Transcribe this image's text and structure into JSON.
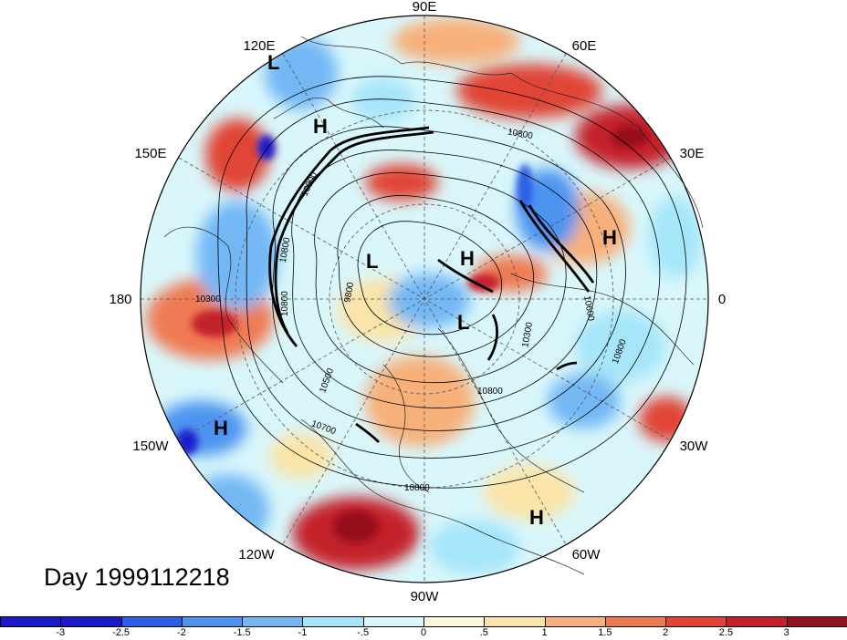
{
  "map": {
    "projection": "north-polar-stereographic",
    "longitude_labels": [
      {
        "lon": 90,
        "label": "90E"
      },
      {
        "lon": 60,
        "label": "60E"
      },
      {
        "lon": 30,
        "label": "30E"
      },
      {
        "lon": 0,
        "label": "0"
      },
      {
        "lon": -30,
        "label": "30W"
      },
      {
        "lon": -60,
        "label": "60W"
      },
      {
        "lon": -90,
        "label": "90W"
      },
      {
        "lon": -120,
        "label": "120W"
      },
      {
        "lon": -150,
        "label": "150W"
      },
      {
        "lon": 180,
        "label": "180"
      },
      {
        "lon": 150,
        "label": "150E"
      },
      {
        "lon": 120,
        "label": "120E"
      }
    ],
    "contour_labels": [
      "10800",
      "10900",
      "10800",
      "10300",
      "10800",
      "9800",
      "10600",
      "10300",
      "10800",
      "10500",
      "10700",
      "10800",
      "10800"
    ],
    "pressure_centers": [
      {
        "type": "L",
        "label": "L"
      },
      {
        "type": "H",
        "label": "H"
      },
      {
        "type": "L",
        "label": "L"
      },
      {
        "type": "H",
        "label": "H"
      },
      {
        "type": "H",
        "label": "H"
      },
      {
        "type": "L",
        "label": "L"
      },
      {
        "type": "H",
        "label": "H"
      },
      {
        "type": "H",
        "label": "H"
      }
    ]
  },
  "day_label": "Day 1999112218",
  "colorbar": {
    "colors": [
      "#1a1acc",
      "#2b5fe6",
      "#4d94f0",
      "#73b8f5",
      "#a6e6fa",
      "#d9f7fb",
      "#fdf8dc",
      "#fbe4a8",
      "#f7b07a",
      "#ef7a52",
      "#e04535",
      "#c4202a",
      "#96101e"
    ],
    "tick_labels": [
      "-3",
      "-2.5",
      "-2",
      "-1.5",
      "-1",
      "-.5",
      "0",
      ".5",
      "1",
      "1.5",
      "2",
      "2.5",
      "3"
    ]
  }
}
